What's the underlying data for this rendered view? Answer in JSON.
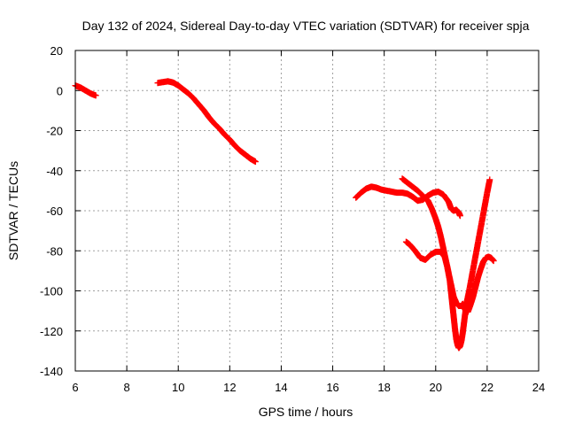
{
  "chart_data": {
    "type": "scatter",
    "title": "Day 132 of 2024, Sidereal Day-to-day VTEC variation (SDTVAR) for receiver spja",
    "xlabel": "GPS time / hours",
    "ylabel": "SDTVAR / TECUs",
    "xlim": [
      6,
      24
    ],
    "ylim": [
      -140,
      20
    ],
    "xticks": [
      6,
      8,
      10,
      12,
      14,
      16,
      18,
      20,
      22,
      24
    ],
    "yticks": [
      -140,
      -120,
      -100,
      -80,
      -60,
      -40,
      -20,
      0,
      20
    ],
    "grid": true,
    "marker": "+",
    "color": "#ff0000",
    "series": [
      {
        "points": [
          [
            6.0,
            2.5
          ],
          [
            6.2,
            1.5
          ],
          [
            6.4,
            0.0
          ],
          [
            6.6,
            -1.5
          ],
          [
            6.8,
            -2.5
          ]
        ]
      },
      {
        "points": [
          [
            9.2,
            3.8
          ],
          [
            9.4,
            4.2
          ],
          [
            9.6,
            4.6
          ],
          [
            9.8,
            4.0
          ],
          [
            10.0,
            2.5
          ],
          [
            10.2,
            0.5
          ],
          [
            10.4,
            -1.5
          ],
          [
            10.6,
            -4.0
          ],
          [
            10.8,
            -7.0
          ],
          [
            11.0,
            -10.0
          ],
          [
            11.2,
            -13.5
          ],
          [
            11.4,
            -16.5
          ],
          [
            11.6,
            -19.0
          ],
          [
            11.8,
            -22.0
          ],
          [
            12.0,
            -24.5
          ],
          [
            12.2,
            -27.5
          ],
          [
            12.4,
            -30.0
          ],
          [
            12.6,
            -32.0
          ],
          [
            12.8,
            -34.0
          ],
          [
            13.0,
            -35.5
          ]
        ]
      },
      {
        "points": [
          [
            16.9,
            -53.5
          ],
          [
            17.1,
            -51.0
          ],
          [
            17.3,
            -49.0
          ],
          [
            17.5,
            -48.0
          ],
          [
            17.7,
            -48.5
          ],
          [
            17.9,
            -49.5
          ],
          [
            18.1,
            -50.0
          ],
          [
            18.3,
            -50.5
          ],
          [
            18.5,
            -51.0
          ],
          [
            18.7,
            -51.0
          ],
          [
            18.9,
            -51.5
          ],
          [
            19.1,
            -53.0
          ],
          [
            19.3,
            -55.0
          ],
          [
            19.5,
            -54.5
          ],
          [
            19.7,
            -52.5
          ],
          [
            19.9,
            -51.0
          ],
          [
            20.1,
            -50.5
          ],
          [
            20.3,
            -52.0
          ],
          [
            20.5,
            -55.5
          ],
          [
            20.6,
            -59.0
          ],
          [
            20.7,
            -60.0
          ],
          [
            20.8,
            -59.5
          ],
          [
            20.9,
            -61.0
          ],
          [
            20.95,
            -62.5
          ]
        ]
      },
      {
        "points": [
          [
            18.7,
            -44.0
          ],
          [
            18.9,
            -46.0
          ],
          [
            19.1,
            -48.0
          ],
          [
            19.3,
            -50.0
          ],
          [
            19.5,
            -52.5
          ],
          [
            19.7,
            -55.0
          ],
          [
            19.85,
            -59.0
          ],
          [
            20.0,
            -64.0
          ],
          [
            20.1,
            -68.0
          ],
          [
            20.2,
            -73.0
          ],
          [
            20.3,
            -79.0
          ],
          [
            20.4,
            -85.0
          ],
          [
            20.5,
            -91.0
          ],
          [
            20.6,
            -97.0
          ],
          [
            20.7,
            -103.0
          ],
          [
            20.8,
            -106.0
          ],
          [
            20.9,
            -107.5
          ],
          [
            21.0,
            -107.5
          ],
          [
            21.05,
            -106.5
          ],
          [
            21.15,
            -109.5
          ],
          [
            21.25,
            -110.5
          ],
          [
            21.35,
            -107.0
          ],
          [
            21.45,
            -103.0
          ],
          [
            21.55,
            -98.0
          ],
          [
            21.65,
            -93.0
          ],
          [
            21.75,
            -89.0
          ],
          [
            21.85,
            -85.5
          ],
          [
            21.95,
            -83.5
          ],
          [
            22.05,
            -83.0
          ],
          [
            22.15,
            -83.5
          ],
          [
            22.25,
            -85.0
          ]
        ]
      },
      {
        "points": [
          [
            18.85,
            -75.5
          ],
          [
            19.0,
            -77.0
          ],
          [
            19.2,
            -80.0
          ],
          [
            19.4,
            -83.5
          ],
          [
            19.6,
            -84.5
          ],
          [
            19.8,
            -82.0
          ],
          [
            20.0,
            -80.5
          ],
          [
            20.2,
            -80.5
          ],
          [
            20.35,
            -83.0
          ],
          [
            20.45,
            -88.0
          ],
          [
            20.55,
            -95.0
          ],
          [
            20.6,
            -101.0
          ],
          [
            20.65,
            -107.0
          ],
          [
            20.7,
            -113.0
          ],
          [
            20.75,
            -119.0
          ],
          [
            20.8,
            -124.0
          ],
          [
            20.85,
            -127.0
          ],
          [
            20.9,
            -128.5
          ],
          [
            20.95,
            -127.5
          ],
          [
            21.0,
            -125.0
          ],
          [
            21.05,
            -121.0
          ],
          [
            21.1,
            -116.0
          ],
          [
            21.15,
            -111.0
          ],
          [
            21.2,
            -106.0
          ],
          [
            21.3,
            -100.0
          ],
          [
            21.4,
            -93.0
          ],
          [
            21.5,
            -86.0
          ],
          [
            21.6,
            -79.0
          ],
          [
            21.7,
            -72.0
          ],
          [
            21.8,
            -65.0
          ],
          [
            21.9,
            -58.0
          ],
          [
            22.0,
            -51.0
          ],
          [
            22.1,
            -44.5
          ]
        ]
      }
    ]
  }
}
